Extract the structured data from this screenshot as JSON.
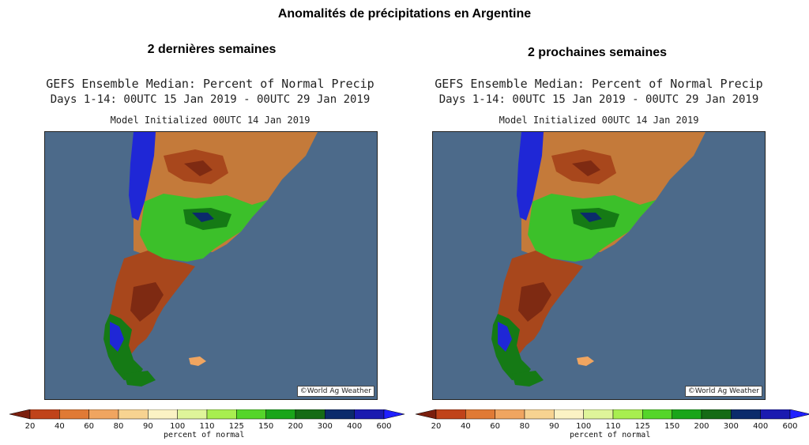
{
  "page": {
    "title": "Anomalités de précipitations en Argentine"
  },
  "panels": [
    {
      "heading": "2 dernières semaines",
      "map_title": "GEFS Ensemble Median: Percent of Normal Precip",
      "map_subtitle": "Days 1-14: 00UTC 15 Jan 2019 - 00UTC 29 Jan 2019",
      "map_init": "Model Initialized 00UTC 14 Jan 2019",
      "credit": "©World Ag Weather"
    },
    {
      "heading": "2 prochaines semaines",
      "map_title": "GEFS Ensemble Median: Percent of Normal Precip",
      "map_subtitle": "Days 1-14: 00UTC 15 Jan 2019 - 00UTC 29 Jan 2019",
      "map_init": "Model Initialized 00UTC 14 Jan 2019",
      "credit": "©World Ag Weather"
    }
  ],
  "legend": {
    "unit": "percent of normal",
    "ticks": [
      "20",
      "40",
      "60",
      "80",
      "90",
      "100",
      "110",
      "125",
      "150",
      "200",
      "300",
      "400",
      "600"
    ],
    "colors": [
      "#7b1f0e",
      "#c0431a",
      "#e07a35",
      "#f0a560",
      "#f7d391",
      "#fbf2c4",
      "#dff59a",
      "#a8ee50",
      "#55d52a",
      "#1aa51a",
      "#156b15",
      "#0b2b6b",
      "#1b1bb0",
      "#2020ff"
    ]
  },
  "palette": {
    "ocean": "#4c6a8a",
    "land_other": "#c47a3a",
    "dry": "#a8471c",
    "very_dry": "#7e2a12",
    "wet": "#3cc02a",
    "very_wet": "#157a15",
    "extreme_wet": "#1f27d6"
  }
}
